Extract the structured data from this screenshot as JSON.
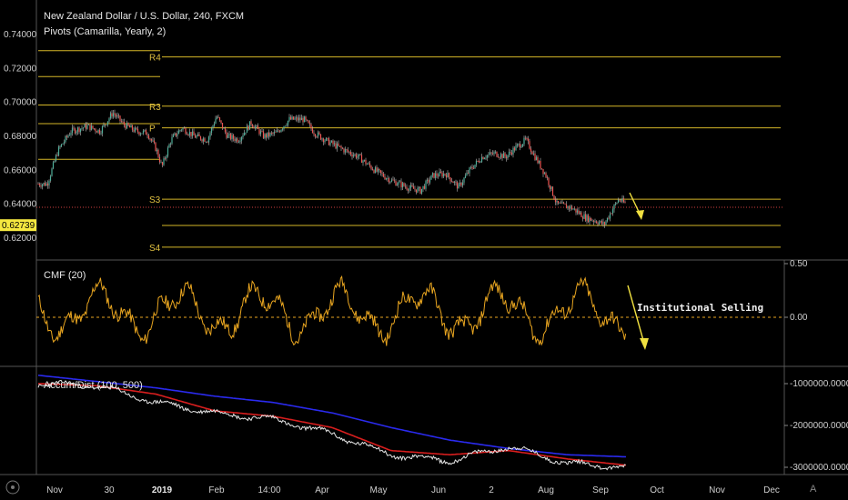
{
  "header": {
    "title": "New Zealand Dollar / U.S. Dollar, 240, FXCM",
    "pivots_label": "Pivots (Camarilla, Yearly, 2)"
  },
  "colors": {
    "background": "#000000",
    "pivot": "#d4b628",
    "candle_up": "#4caf9a",
    "candle_down": "#ef5350",
    "cmf": "#e8a520",
    "ad_line": "#e6e6e6",
    "ma_fast": "#d81e1e",
    "ma_slow": "#2a2aee",
    "annotation": "#f0e040",
    "price_badge": "#f5e840"
  },
  "chart_data": [
    {
      "type": "candlestick",
      "title": "New Zealand Dollar / U.S. Dollar, 240, FXCM",
      "ylim": [
        0.612,
        0.748
      ],
      "yticks": [
        "0.74000",
        "0.72000",
        "0.70000",
        "0.68000",
        "0.66000",
        "0.64000",
        "0.62000"
      ],
      "yticks_values": [
        0.74,
        0.72,
        0.7,
        0.68,
        0.66,
        0.64,
        0.62
      ],
      "last_price": "0.62739",
      "last_price_value": 0.6274,
      "series": [
        {
          "name": "close",
          "x": [
            "Nov",
            "30",
            "2019",
            "Feb",
            "14:00",
            "Apr",
            "May",
            "Jun",
            "2",
            "Aug",
            "Sep"
          ],
          "values": [
            0.655,
            0.69,
            0.68,
            0.69,
            0.685,
            0.68,
            0.665,
            0.65,
            0.67,
            0.63,
            0.64
          ]
        }
      ],
      "pivots": [
        {
          "label": "R4",
          "value": 0.7268,
          "prev_value": 0.7305
        },
        {
          "label": "",
          "value": null,
          "prev_value": 0.7152
        },
        {
          "label": "R3",
          "value": 0.6978,
          "prev_value": 0.6985
        },
        {
          "label": "P",
          "value": 0.685,
          "prev_value": 0.6875
        },
        {
          "label": "",
          "value": null,
          "prev_value": 0.6665
        },
        {
          "label": "S3",
          "value": 0.643,
          "prev_value": null
        },
        {
          "label": "",
          "value": 0.6275,
          "prev_value": null
        },
        {
          "label": "S4",
          "value": 0.6147,
          "prev_value": null
        }
      ]
    },
    {
      "type": "line",
      "title": "CMF (20)",
      "ylim": [
        -0.28,
        0.5
      ],
      "yticks": [
        "0.50",
        "0.00"
      ],
      "yticks_values": [
        0.5,
        0.0
      ],
      "zero_line": 0.0,
      "annotation": "Institutional Selling"
    },
    {
      "type": "line",
      "title": "Accum/Dist (100, 500)",
      "ylim": [
        -3100000,
        -700000
      ],
      "yticks": [
        "-1000000.00000",
        "-2000000.00000",
        "-3000000.00000"
      ],
      "yticks_values": [
        -1000000,
        -2000000,
        -3000000
      ],
      "series": [
        {
          "name": "",
          "values": [
            -1000000,
            -1050000,
            -1450000,
            -1700000,
            -1850000,
            -2200000,
            -2700000,
            -2850000,
            -2500000,
            -2900000,
            -3000000
          ]
        },
        {
          "name": "",
          "values": [
            -1000000,
            -1050000,
            -1250000,
            -1650000,
            -1780000,
            -2050000,
            -2600000,
            -2700000,
            -2600000,
            -2800000,
            -2950000
          ]
        },
        {
          "name": "",
          "values": [
            -800000,
            -950000,
            -1100000,
            -1300000,
            -1450000,
            -1700000,
            -2050000,
            -2350000,
            -2550000,
            -2700000,
            -2750000
          ]
        }
      ]
    }
  ],
  "x_axis": {
    "ticks": [
      {
        "label": "Nov",
        "bold": false
      },
      {
        "label": "30",
        "bold": false
      },
      {
        "label": "2019",
        "bold": true
      },
      {
        "label": "Feb",
        "bold": false
      },
      {
        "label": "14:00",
        "bold": false
      },
      {
        "label": "Apr",
        "bold": false
      },
      {
        "label": "May",
        "bold": false
      },
      {
        "label": "Jun",
        "bold": false
      },
      {
        "label": "2",
        "bold": false
      },
      {
        "label": "Aug",
        "bold": false
      },
      {
        "label": "Oct",
        "bold": false
      },
      {
        "label": "Nov",
        "bold": false
      },
      {
        "label": "Dec",
        "bold": false
      }
    ],
    "sep_label": "Sep"
  },
  "watermark": "A"
}
